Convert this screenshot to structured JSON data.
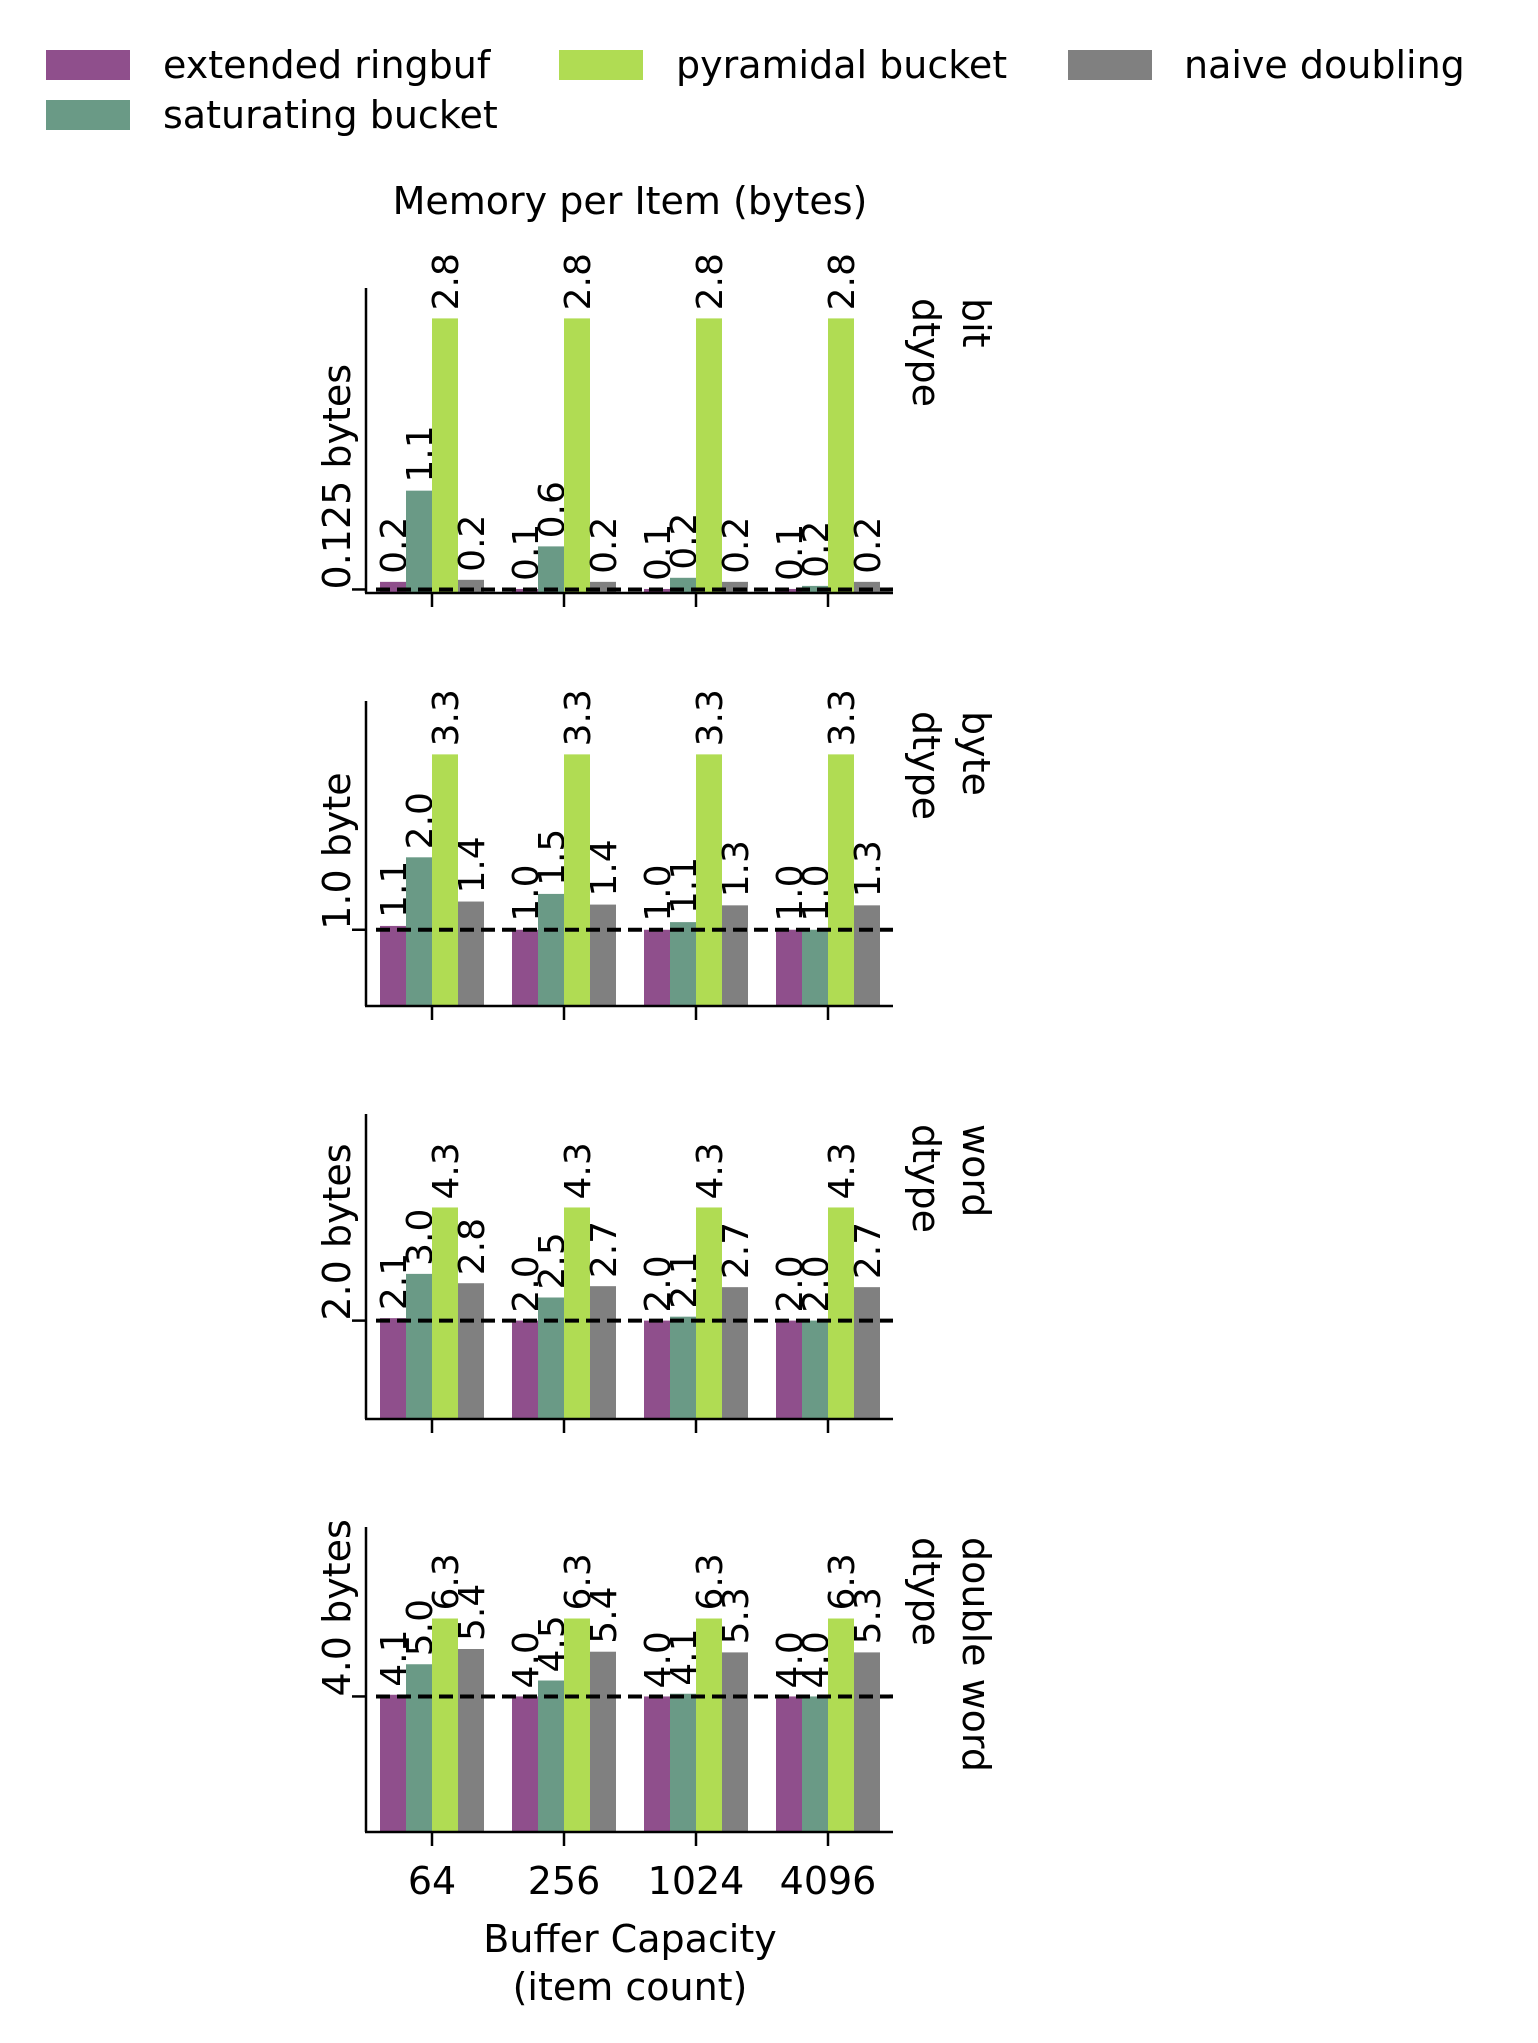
{
  "chart_data": {
    "type": "bar",
    "title": "Memory per Item (bytes)",
    "xlabel": [
      "Buffer Capacity",
      "(item count)"
    ],
    "categories": [
      "64",
      "256",
      "1024",
      "4096"
    ],
    "legend": {
      "placement": "top",
      "entries": [
        {
          "name": "extended ringbuf",
          "color": "#8f4f8c"
        },
        {
          "name": "pyramidal bucket",
          "color": "#b0dc53"
        },
        {
          "name": "naive doubling",
          "color": "#808080"
        },
        {
          "name": "saturating bucket",
          "color": "#6a9a86"
        }
      ]
    },
    "series_order": [
      "extended ringbuf",
      "saturating bucket",
      "pyramidal bucket",
      "naive doubling"
    ],
    "series_colors": [
      "#8f4f8c",
      "#6a9a86",
      "#b0dc53",
      "#808080"
    ],
    "grid": false,
    "panels": [
      {
        "row_label": [
          "bit",
          "dtype"
        ],
        "ref_value": 0.125,
        "ref_label": "0.125 bytes",
        "ylim": [
          0.09,
          3.1
        ],
        "values": [
          [
            0.2,
            1.1,
            2.8,
            0.2
          ],
          [
            0.1,
            0.6,
            2.8,
            0.2
          ],
          [
            0.1,
            0.2,
            2.8,
            0.2
          ],
          [
            0.1,
            0.2,
            2.8,
            0.2
          ]
        ],
        "bar_values": [
          [
            0.2,
            1.1,
            2.8,
            0.22
          ],
          [
            0.13,
            0.55,
            2.8,
            0.2
          ],
          [
            0.13,
            0.24,
            2.8,
            0.2
          ],
          [
            0.13,
            0.16,
            2.8,
            0.2
          ]
        ],
        "labels": [
          [
            "0.2",
            "1.1",
            "2.8",
            "0.2"
          ],
          [
            "0.1",
            "0.6",
            "2.8",
            "0.2"
          ],
          [
            "0.1",
            "0.2",
            "2.8",
            "0.2"
          ],
          [
            "0.1",
            "0.2",
            "2.8",
            "0.2"
          ]
        ]
      },
      {
        "row_label": [
          "byte",
          "dtype"
        ],
        "ref_value": 1.0,
        "ref_label": "1.0 byte",
        "ylim": [
          0.0,
          4.0
        ],
        "values": [
          [
            1.1,
            2.0,
            3.3,
            1.4
          ],
          [
            1.0,
            1.5,
            3.3,
            1.4
          ],
          [
            1.0,
            1.1,
            3.3,
            1.3
          ],
          [
            1.0,
            1.0,
            3.3,
            1.3
          ]
        ],
        "bar_values": [
          [
            1.05,
            1.95,
            3.3,
            1.37
          ],
          [
            1.0,
            1.47,
            3.3,
            1.33
          ],
          [
            1.0,
            1.1,
            3.3,
            1.32
          ],
          [
            1.0,
            1.0,
            3.3,
            1.32
          ]
        ],
        "labels": [
          [
            "1.1",
            "2.0",
            "3.3",
            "1.4"
          ],
          [
            "1.0",
            "1.5",
            "3.3",
            "1.4"
          ],
          [
            "1.0",
            "1.1",
            "3.3",
            "1.3"
          ],
          [
            "1.0",
            "1.0",
            "3.3",
            "1.3"
          ]
        ]
      },
      {
        "row_label": [
          "word",
          "dtype"
        ],
        "ref_value": 2.0,
        "ref_label": "2.0 bytes",
        "ylim": [
          0.0,
          6.2
        ],
        "values": [
          [
            2.1,
            3.0,
            4.3,
            2.8
          ],
          [
            2.0,
            2.5,
            4.3,
            2.7
          ],
          [
            2.0,
            2.1,
            4.3,
            2.7
          ],
          [
            2.0,
            2.0,
            4.3,
            2.7
          ]
        ],
        "bar_values": [
          [
            2.05,
            2.95,
            4.3,
            2.76
          ],
          [
            2.0,
            2.47,
            4.3,
            2.7
          ],
          [
            2.0,
            2.08,
            4.3,
            2.68
          ],
          [
            2.0,
            2.0,
            4.3,
            2.68
          ]
        ],
        "labels": [
          [
            "2.1",
            "3.0",
            "4.3",
            "2.8"
          ],
          [
            "2.0",
            "2.5",
            "4.3",
            "2.7"
          ],
          [
            "2.0",
            "2.1",
            "4.3",
            "2.7"
          ],
          [
            "2.0",
            "2.0",
            "4.3",
            "2.7"
          ]
        ]
      },
      {
        "row_label": [
          "double word",
          "dtype"
        ],
        "ref_value": 4.0,
        "ref_label": "4.0 bytes",
        "ylim": [
          0.0,
          9.0
        ],
        "values": [
          [
            4.1,
            5.0,
            6.3,
            5.4
          ],
          [
            4.0,
            4.5,
            6.3,
            5.4
          ],
          [
            4.0,
            4.1,
            6.3,
            5.3
          ],
          [
            4.0,
            4.0,
            6.3,
            5.3
          ]
        ],
        "bar_values": [
          [
            4.05,
            4.95,
            6.3,
            5.4
          ],
          [
            4.0,
            4.47,
            6.3,
            5.32
          ],
          [
            4.0,
            4.08,
            6.3,
            5.3
          ],
          [
            4.0,
            4.0,
            6.3,
            5.3
          ]
        ],
        "labels": [
          [
            "4.1",
            "5.0",
            "6.3",
            "5.4"
          ],
          [
            "4.0",
            "4.5",
            "6.3",
            "5.4"
          ],
          [
            "4.0",
            "4.1",
            "6.3",
            "5.3"
          ],
          [
            "4.0",
            "4.0",
            "6.3",
            "5.3"
          ]
        ]
      }
    ]
  }
}
